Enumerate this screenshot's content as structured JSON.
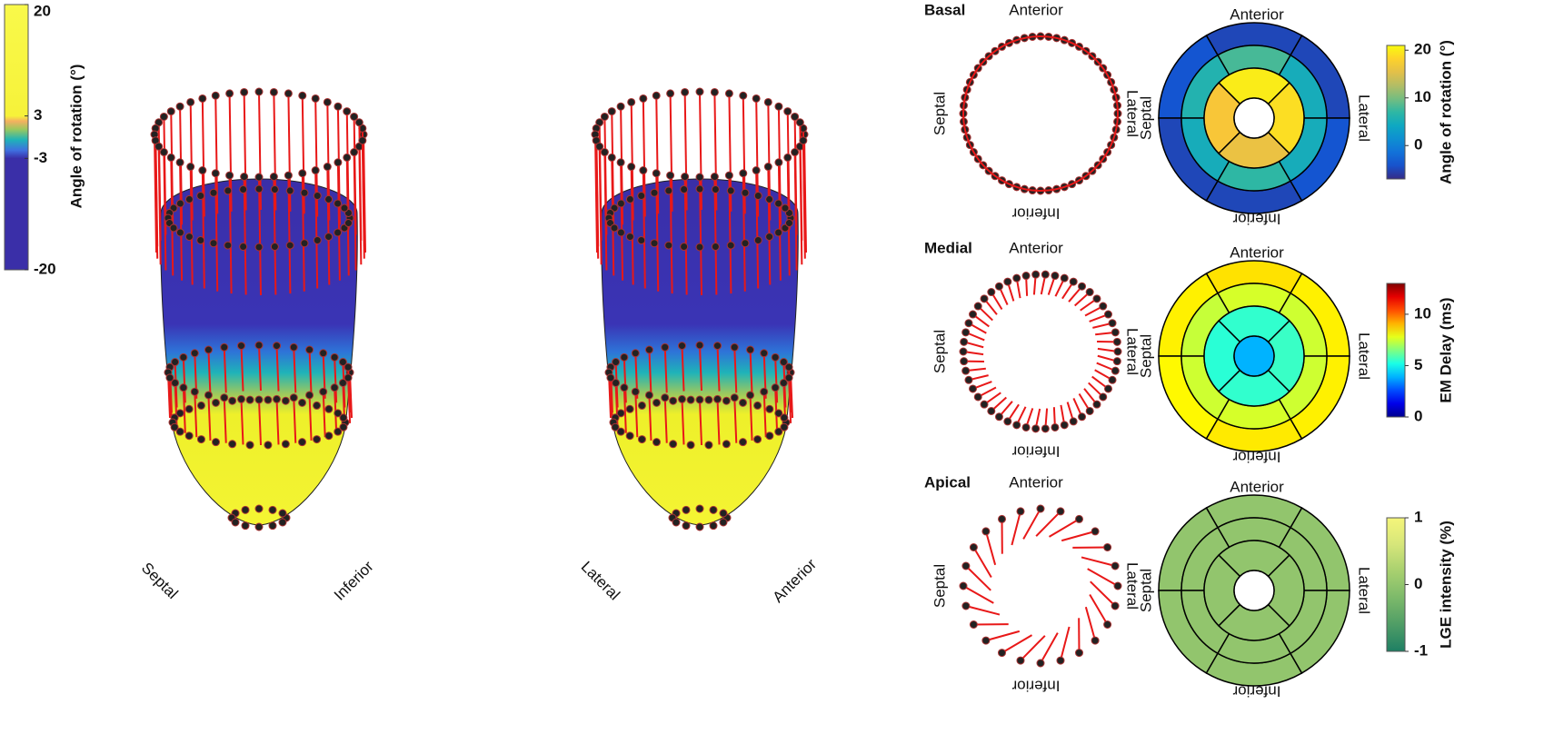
{
  "colorbar": {
    "label": "Angle of rotation (°)",
    "lim": [
      -20,
      20
    ],
    "ticks": [
      20,
      3,
      -3,
      -20
    ]
  },
  "views": [
    {
      "labels": [
        "Septal",
        "Inferior"
      ]
    },
    {
      "labels": [
        "Lateral",
        "Anterior"
      ]
    }
  ],
  "slices": [
    {
      "name": "Basal",
      "anterior": "Anterior",
      "septal": "Septal",
      "lateral": "Lateral",
      "inferior": "Inferior",
      "bullseye": {
        "outer": [
          -5,
          -5,
          -4,
          -5,
          -5,
          -4
        ],
        "middle": [
          5,
          8,
          6,
          5,
          7,
          5
        ],
        "inner": [
          20,
          17,
          16,
          19
        ]
      },
      "colorbar": {
        "label": "Angle of rotation (°)",
        "colormap": "parula",
        "lim": [
          -7,
          21
        ],
        "ticks": [
          20,
          10,
          0
        ]
      }
    },
    {
      "name": "Medial",
      "anterior": "Anterior",
      "septal": "Septal",
      "lateral": "Lateral",
      "inferior": "Inferior",
      "bullseye": {
        "outer": [
          8.3,
          8.5,
          8.3,
          8.2,
          8.4,
          8.3
        ],
        "middle": [
          7.5,
          7.6,
          7.4,
          7.5,
          7.6,
          7.5
        ],
        "inner": [
          5.5,
          5.4,
          5.5,
          5.6
        ],
        "apex": 3.9
      },
      "colorbar": {
        "label": "EM Delay (ms)",
        "colormap": "jet",
        "lim": [
          0,
          13
        ],
        "ticks": [
          0,
          5,
          10
        ]
      }
    },
    {
      "name": "Apical",
      "anterior": "Anterior",
      "septal": "Septal",
      "lateral": "Lateral",
      "inferior": "Inferior",
      "bullseye": {
        "outer": [
          0,
          0,
          0,
          0,
          0,
          0
        ],
        "middle": [
          0,
          0,
          0,
          0,
          0,
          0
        ],
        "inner": [
          0,
          0,
          0,
          0
        ]
      },
      "colorbar": {
        "label": "LGE intensity (%)",
        "colormap": "lge",
        "lim": [
          -1,
          1
        ],
        "ticks": [
          -1,
          0,
          1
        ]
      }
    }
  ]
}
